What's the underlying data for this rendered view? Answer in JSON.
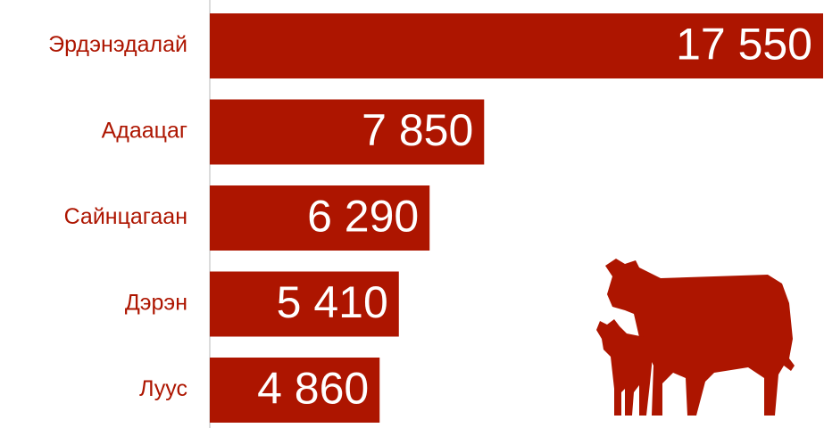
{
  "chart_data": {
    "type": "bar",
    "orientation": "horizontal",
    "categories": [
      "Эрдэнэдалай",
      "Адаацаг",
      "Сайнцагаан",
      "Дэрэн",
      "Луус"
    ],
    "values": [
      17550,
      7850,
      6290,
      5410,
      4860
    ],
    "value_labels": [
      "17 550",
      "7 850",
      "6 290",
      "5 410",
      "4 860"
    ],
    "color": "#ad1500",
    "xlim": [
      0,
      17550
    ]
  }
}
